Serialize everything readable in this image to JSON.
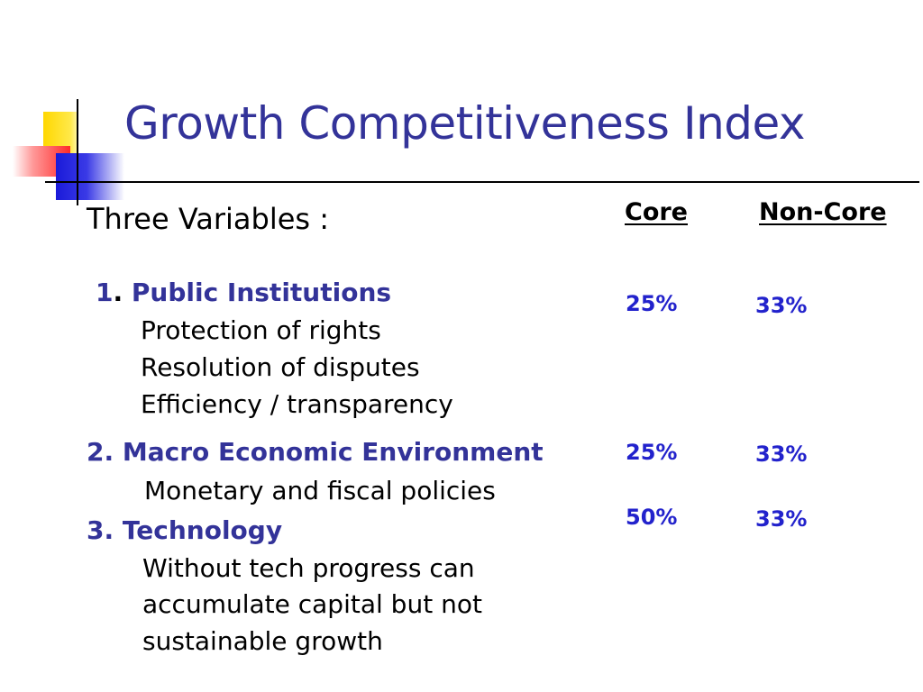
{
  "slide": {
    "title": "Growth Competitiveness Index",
    "intro": "Three Variables :",
    "columns": {
      "core": "Core",
      "non_core": "Non-Core"
    },
    "sections": [
      {
        "number": "1",
        "separator": ".",
        "label": "Public Institutions",
        "core": "25%",
        "non_core": "33%",
        "details": [
          "Protection of rights",
          "Resolution of disputes",
          "Efficiency / transparency"
        ]
      },
      {
        "heading": "2. Macro Economic Environment",
        "core": "25%",
        "non_core": "33%",
        "details": [
          "Monetary and fiscal policies"
        ]
      },
      {
        "heading": "3. Technology",
        "core": "50%",
        "non_core": "33%",
        "details": [
          "Without tech progress can",
          "accumulate capital but not",
          "sustainable growth"
        ]
      }
    ]
  },
  "colors": {
    "title": "#333399",
    "section_heading": "#333399",
    "percent": "#2222cc",
    "accent_yellow": "#ffd700",
    "accent_red": "#ff2a2a",
    "accent_blue": "#1a1ad9"
  }
}
